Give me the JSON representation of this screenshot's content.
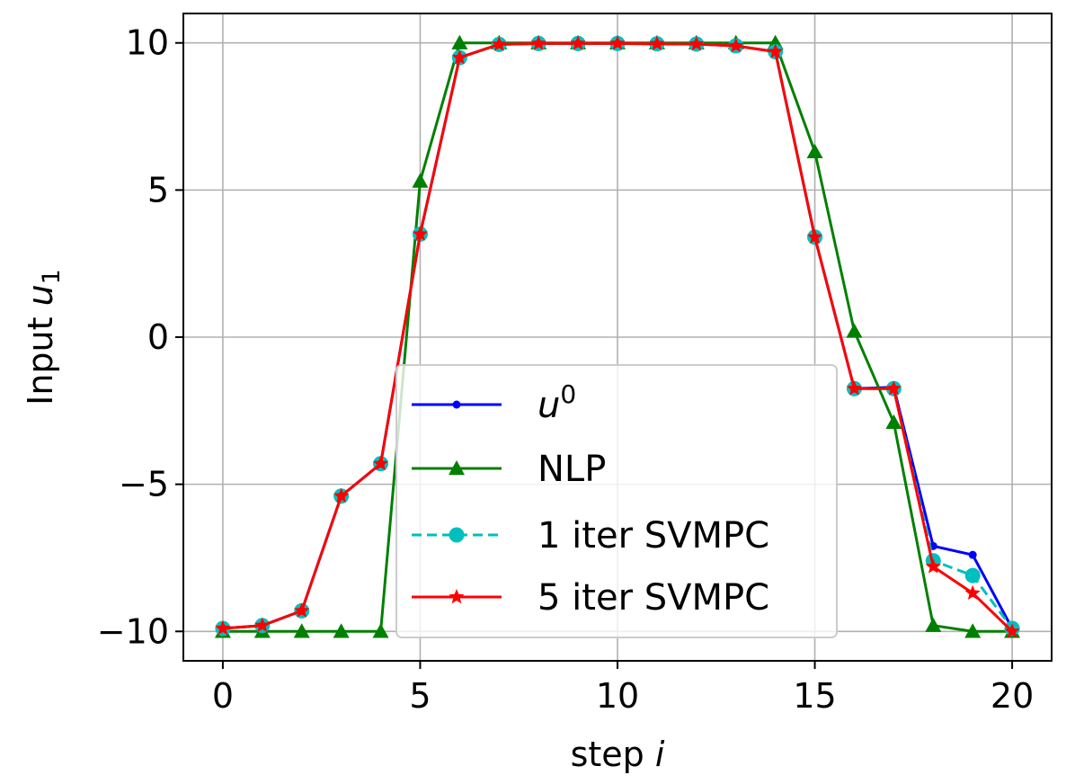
{
  "chart_data": {
    "type": "line",
    "title": "",
    "xlabel": {
      "text": "step ",
      "var": "i"
    },
    "ylabel": {
      "text": "Input ",
      "var": "u",
      "sub": "1"
    },
    "xlim": [
      -1,
      21
    ],
    "ylim": [
      -11,
      11
    ],
    "xticks": [
      0,
      5,
      10,
      15,
      20
    ],
    "yticks": [
      -10,
      -5,
      0,
      5,
      10
    ],
    "xtick_labels": [
      "0",
      "5",
      "10",
      "15",
      "20"
    ],
    "ytick_labels": [
      "−10",
      "−5",
      "0",
      "5",
      "10"
    ],
    "grid": true,
    "legend_position": "lower-center",
    "x": [
      0,
      1,
      2,
      3,
      4,
      5,
      6,
      7,
      8,
      9,
      10,
      11,
      12,
      13,
      14,
      15,
      16,
      17,
      18,
      19,
      20
    ],
    "series": [
      {
        "name": "u0",
        "legend": {
          "base": "u",
          "sup": "0"
        },
        "color": "#0000ff",
        "marker": "dot",
        "dash": "solid",
        "values": [
          -9.9,
          -9.8,
          -9.3,
          -5.4,
          -4.3,
          3.5,
          9.5,
          9.95,
          9.98,
          9.98,
          9.98,
          9.97,
          9.96,
          9.9,
          9.7,
          3.4,
          -1.75,
          -1.7,
          -7.1,
          -7.4,
          -9.9
        ]
      },
      {
        "name": "NLP",
        "legend": {
          "base": "NLP",
          "sup": ""
        },
        "color": "#008000",
        "marker": "triangle",
        "dash": "solid",
        "values": [
          -10,
          -10,
          -10,
          -10,
          -10,
          5.3,
          10,
          10,
          10,
          10,
          10,
          10,
          10,
          10,
          10,
          6.3,
          0.2,
          -2.9,
          -9.8,
          -10,
          -10
        ]
      },
      {
        "name": "1 iter SVMPC",
        "legend": {
          "base": "1 iter SVMPC",
          "sup": ""
        },
        "color": "#00bfbf",
        "marker": "circle",
        "dash": "dashed",
        "values": [
          -9.9,
          -9.8,
          -9.3,
          -5.4,
          -4.3,
          3.5,
          9.5,
          9.95,
          9.98,
          9.98,
          9.98,
          9.97,
          9.96,
          9.9,
          9.7,
          3.4,
          -1.75,
          -1.75,
          -7.6,
          -8.1,
          -9.9
        ]
      },
      {
        "name": "5 iter SVMPC",
        "legend": {
          "base": "5 iter SVMPC",
          "sup": ""
        },
        "color": "#ff0000",
        "marker": "star",
        "dash": "solid",
        "values": [
          -9.9,
          -9.8,
          -9.3,
          -5.4,
          -4.3,
          3.5,
          9.5,
          9.95,
          9.98,
          9.98,
          9.98,
          9.97,
          9.96,
          9.9,
          9.7,
          3.4,
          -1.75,
          -1.75,
          -7.8,
          -8.7,
          -10
        ]
      }
    ]
  }
}
